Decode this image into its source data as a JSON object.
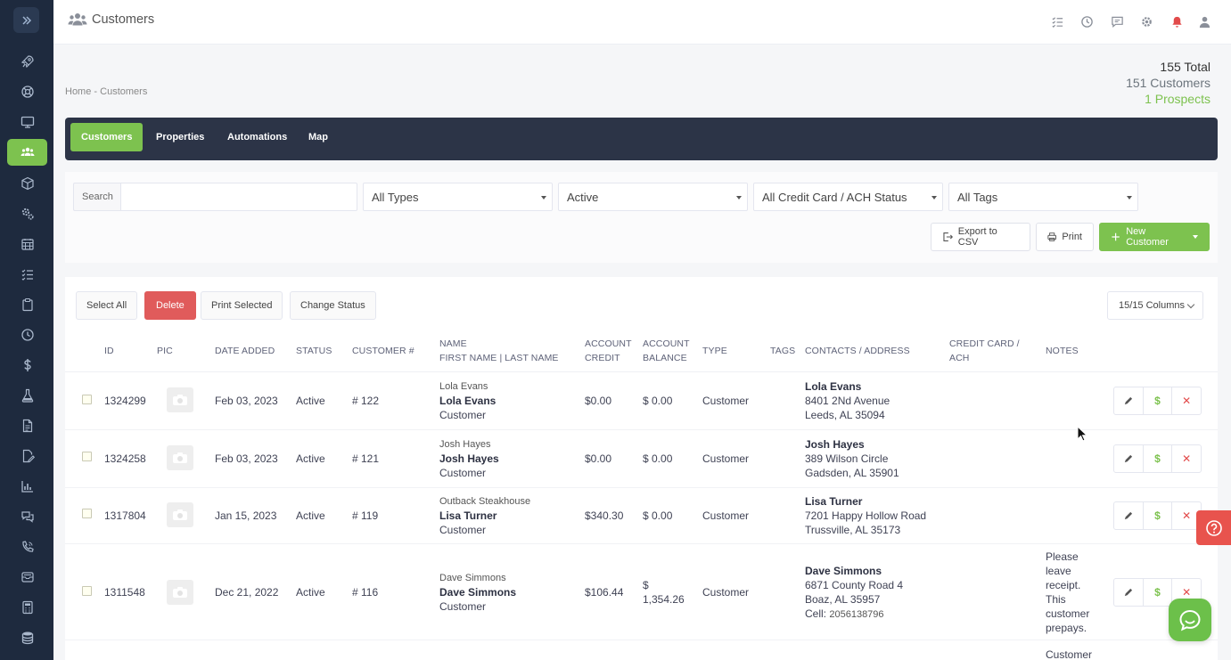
{
  "app": {
    "page_title": "Customers",
    "title_icon": "users-icon"
  },
  "sidebar": {
    "toggle_icon": "double-chevron-right-icon",
    "items": [
      {
        "icon": "rocket-icon"
      },
      {
        "icon": "lifebuoy-icon"
      },
      {
        "icon": "monitor-icon"
      },
      {
        "icon": "users-icon",
        "active": true
      },
      {
        "icon": "box-icon"
      },
      {
        "icon": "gears-icon"
      },
      {
        "icon": "calendar-icon"
      },
      {
        "icon": "list-icon"
      },
      {
        "icon": "clipboard-icon"
      },
      {
        "icon": "clock-icon"
      },
      {
        "icon": "dollar-icon"
      },
      {
        "icon": "flask-icon"
      },
      {
        "icon": "document-icon"
      },
      {
        "icon": "edit-document-icon"
      },
      {
        "icon": "bar-chart-icon"
      },
      {
        "icon": "chat-icon"
      },
      {
        "icon": "phone-icon"
      },
      {
        "icon": "inbox-icon"
      },
      {
        "icon": "calculator-icon"
      },
      {
        "icon": "database-icon"
      }
    ]
  },
  "topbar": {
    "icons": [
      "checklist-icon",
      "clock-icon",
      "message-icon",
      "settings-icon",
      "notification-bell-icon",
      "user-icon"
    ],
    "notification_color": "#e24b4b"
  },
  "breadcrumb": {
    "home": "Home",
    "separator": "-",
    "current": "Customers"
  },
  "summary": {
    "total": "155 Total",
    "customers": "151 Customers",
    "prospects": "1 Prospects"
  },
  "tabs": [
    {
      "label": "Customers",
      "active": true
    },
    {
      "label": "Properties",
      "active": false
    },
    {
      "label": "Automations",
      "active": false
    },
    {
      "label": "Map",
      "active": false
    }
  ],
  "filters": {
    "search_label": "Search",
    "search_value": "",
    "type": "All Types",
    "status": "Active",
    "payment": "All Credit Card / ACH Status",
    "tags": "All Tags"
  },
  "toolbar": {
    "export": "Export to CSV",
    "print": "Print",
    "new_customer": "New Customer"
  },
  "bulk": {
    "select_all": "Select All",
    "delete": "Delete",
    "print_selected": "Print Selected",
    "change_status": "Change Status",
    "columns": "15/15 Columns"
  },
  "table": {
    "headers": {
      "id": "ID",
      "pic": "PIC",
      "date_added": "DATE ADDED",
      "status": "STATUS",
      "customer_no": "CUSTOMER #",
      "name_line1": "NAME",
      "name_first": "FIRST NAME",
      "name_sep": "|",
      "name_last": "LAST NAME",
      "account_credit_1": "ACCOUNT",
      "account_credit_2": "CREDIT",
      "account_balance_1": "ACCOUNT",
      "account_balance_2": "BALANCE",
      "type": "TYPE",
      "tags": "TAGS",
      "contacts": "CONTACTS / ADDRESS",
      "credit_card_1": "CREDIT CARD /",
      "credit_card_2": "ACH",
      "notes": "NOTES"
    },
    "rows": [
      {
        "id": "1324299",
        "date": "Feb 03, 2023",
        "status": "Active",
        "number": "# 122",
        "company": "Lola Evans",
        "name": "Lola Evans",
        "kind": "Customer",
        "credit": "$0.00",
        "balance": "$ 0.00",
        "type": "Customer",
        "contact_name": "Lola Evans",
        "address1": "8401 2Nd Avenue",
        "address2": "Leeds, AL 35094"
      },
      {
        "id": "1324258",
        "date": "Feb 03, 2023",
        "status": "Active",
        "number": "# 121",
        "company": "Josh Hayes",
        "name": "Josh Hayes",
        "kind": "Customer",
        "credit": "$0.00",
        "balance": "$ 0.00",
        "type": "Customer",
        "contact_name": "Josh Hayes",
        "address1": "389 Wilson Circle",
        "address2": "Gadsden, AL 35901"
      },
      {
        "id": "1317804",
        "date": "Jan 15, 2023",
        "status": "Active",
        "number": "# 119",
        "company": "Outback Steakhouse",
        "name": "Lisa Turner",
        "kind": "Customer",
        "credit": "$340.30",
        "balance": "$ 0.00",
        "type": "Customer",
        "contact_name": "Lisa Turner",
        "address1": "7201 Happy Hollow Road",
        "address2": "Trussville, AL 35173"
      },
      {
        "id": "1311548",
        "date": "Dec 21, 2022",
        "status": "Active",
        "number": "# 116",
        "company": "Dave Simmons",
        "name": "Dave Simmons",
        "kind": "Customer",
        "credit": "$106.44",
        "balance_1": "$",
        "balance_2": "1,354.26",
        "type": "Customer",
        "contact_name": "Dave Simmons",
        "address1": "6871 County Road 4",
        "address2": "Boaz, AL 35957",
        "cell_label": "Cell:",
        "cell": "2056138796",
        "notes": [
          "Please",
          "leave",
          "receipt.",
          "This",
          "customer",
          "prepays."
        ]
      }
    ],
    "partial_note": "Customer"
  },
  "widgets": {
    "help_icon": "question-circle-icon",
    "chat_icon": "chat-bubble-icon"
  },
  "colors": {
    "sidebar": "#1e2a3e",
    "accent_green": "#7dc24f",
    "tabbar": "#2c3447",
    "danger": "#e05b5b"
  }
}
